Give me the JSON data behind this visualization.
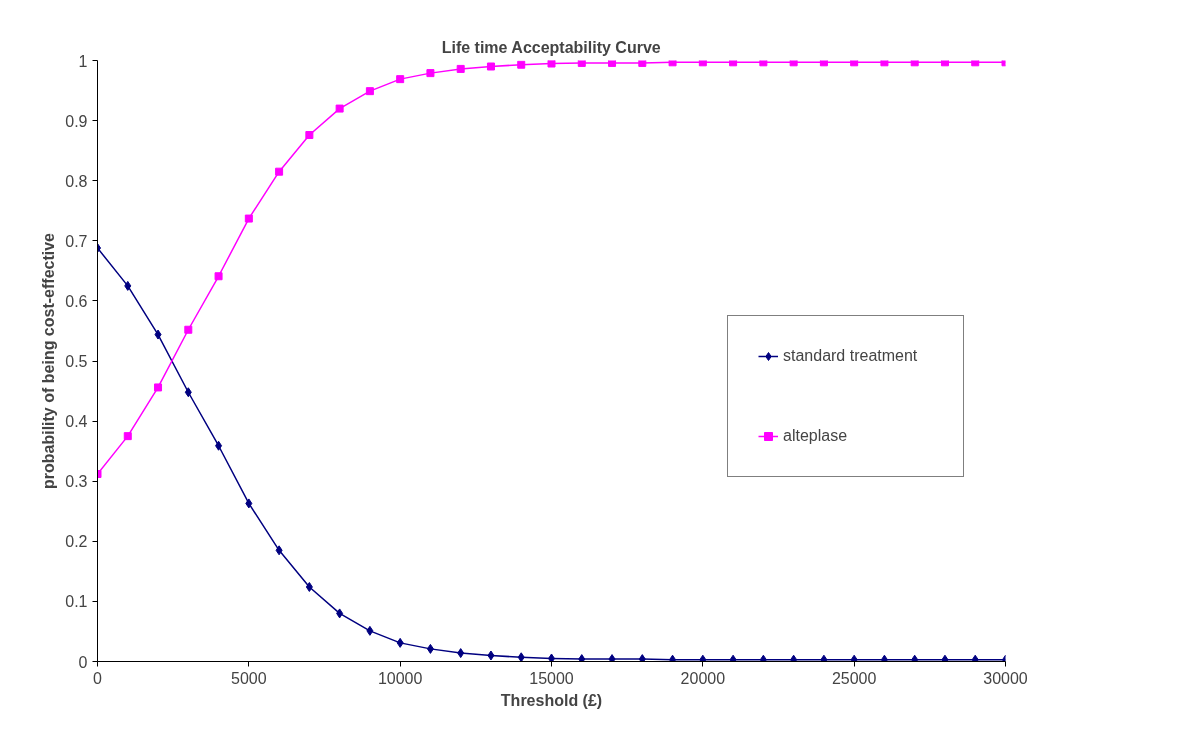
{
  "chart_data": {
    "type": "line",
    "title": "Life time Acceptability Curve",
    "xlabel": "Threshold (£)",
    "ylabel": "probability of being cost-effective",
    "x": [
      0,
      1000,
      2000,
      3000,
      4000,
      5000,
      6000,
      7000,
      8000,
      9000,
      10000,
      11000,
      12000,
      13000,
      14000,
      15000,
      16000,
      17000,
      18000,
      19000,
      20000,
      21000,
      22000,
      23000,
      24000,
      25000,
      26000,
      27000,
      28000,
      29000,
      30000
    ],
    "series": [
      {
        "name": "standard treatment",
        "color": "#000080",
        "marker": "diamond",
        "values": [
          0.688,
          0.625,
          0.544,
          0.448,
          0.359,
          0.263,
          0.185,
          0.124,
          0.08,
          0.051,
          0.031,
          0.021,
          0.014,
          0.01,
          0.007,
          0.005,
          0.004,
          0.004,
          0.004,
          0.003,
          0.003,
          0.003,
          0.003,
          0.003,
          0.003,
          0.003,
          0.003,
          0.003,
          0.003,
          0.003,
          0.003
        ]
      },
      {
        "name": "alteplase",
        "color": "#ff00ff",
        "marker": "square",
        "values": [
          0.312,
          0.375,
          0.456,
          0.552,
          0.641,
          0.737,
          0.815,
          0.876,
          0.92,
          0.949,
          0.969,
          0.979,
          0.986,
          0.99,
          0.993,
          0.995,
          0.996,
          0.996,
          0.996,
          0.997,
          0.997,
          0.997,
          0.997,
          0.997,
          0.997,
          0.997,
          0.997,
          0.997,
          0.997,
          0.997,
          0.997
        ]
      }
    ],
    "xlim": [
      0,
      30000
    ],
    "xticks": [
      0,
      5000,
      10000,
      15000,
      20000,
      25000,
      30000
    ],
    "ylim": [
      0,
      1
    ],
    "yticks": [
      0,
      0.1,
      0.2,
      0.3,
      0.4,
      0.5,
      0.6,
      0.7,
      0.8,
      0.9,
      1
    ],
    "grid": false,
    "legend": "right",
    "line_style": "solid"
  }
}
